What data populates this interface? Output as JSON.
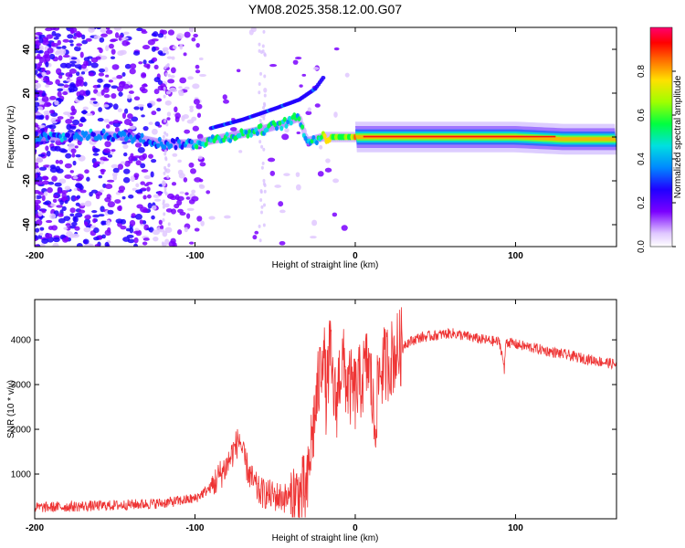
{
  "title": "YM08.2025.358.12.00.G07",
  "chart_data": [
    {
      "type": "heatmap",
      "xlabel": "Height of straight line (km)",
      "ylabel": "Frequency (Hz)",
      "xlim": [
        -200,
        163
      ],
      "ylim": [
        -50,
        50
      ],
      "xticks": [
        "-200",
        "-100",
        "0",
        "100"
      ],
      "yticks": [
        "-40",
        "-20",
        "0",
        "20",
        "40"
      ],
      "colorbar": {
        "label": "Normalized spectral amplitude",
        "ticks": [
          "0.0",
          "0.2",
          "0.4",
          "0.6",
          "0.8"
        ],
        "range": [
          0,
          1
        ]
      },
      "ridge": {
        "x": [
          -200,
          -180,
          -160,
          -140,
          -120,
          -100,
          -80,
          -60,
          -45,
          -35,
          -30,
          -25,
          -20,
          -15,
          0,
          50,
          100,
          130,
          163
        ],
        "freq": [
          0,
          0,
          1,
          0,
          -3,
          -3,
          0,
          3,
          6,
          9,
          -2,
          -1,
          0,
          0,
          0,
          0,
          0,
          -1,
          -1
        ]
      },
      "branch": {
        "x": [
          -90,
          -70,
          -50,
          -35,
          -25,
          -20
        ],
        "freq": [
          4,
          8,
          13,
          17,
          22,
          27
        ]
      }
    },
    {
      "type": "line",
      "xlabel": "Height of straight line (km)",
      "ylabel": "SNR (10 * v/v)",
      "xlim": [
        -200,
        163
      ],
      "ylim": [
        0,
        4900
      ],
      "xticks": [
        "-200",
        "-100",
        "0",
        "100"
      ],
      "yticks": [
        "1000",
        "2000",
        "3000",
        "4000"
      ],
      "series": [
        {
          "name": "SNR",
          "color": "#ee3333",
          "x": [
            -200,
            -150,
            -120,
            -100,
            -90,
            -80,
            -75,
            -72,
            -70,
            -65,
            -60,
            -50,
            -40,
            -35,
            -30,
            -28,
            -25,
            -22,
            -20,
            -18,
            -16,
            -14,
            -12,
            -10,
            -8,
            -5,
            0,
            5,
            8,
            10,
            12,
            15,
            20,
            25,
            30,
            40,
            60,
            80,
            90,
            92,
            93,
            94,
            95,
            100,
            120,
            140,
            163
          ],
          "y": [
            250,
            300,
            350,
            450,
            700,
            1200,
            1600,
            1800,
            1400,
            900,
            600,
            500,
            450,
            500,
            600,
            1500,
            2400,
            3200,
            4000,
            2600,
            3800,
            3000,
            2500,
            3200,
            3500,
            3000,
            2800,
            3200,
            3500,
            3000,
            2000,
            3300,
            3500,
            3700,
            3900,
            4050,
            4150,
            4000,
            3950,
            3600,
            3300,
            4000,
            3950,
            3900,
            3750,
            3600,
            3450
          ]
        }
      ]
    }
  ]
}
